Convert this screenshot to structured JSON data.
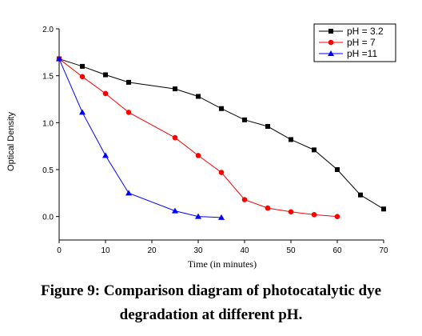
{
  "caption": {
    "line1": "Figure 9: Comparison diagram of photocatalytic dye",
    "line2": "degradation at different pH."
  },
  "chart_data": {
    "type": "line",
    "title": "",
    "xlabel": "Time (in minutes)",
    "ylabel": "Optical Density",
    "xlim": [
      0,
      70
    ],
    "ylim": [
      -0.25,
      2.0
    ],
    "x_ticks": [
      0,
      10,
      20,
      30,
      40,
      50,
      60,
      70
    ],
    "x_tick_labels": [
      "0",
      "10",
      "20",
      "30",
      "40",
      "50",
      "60",
      "70"
    ],
    "y_ticks": [
      0.0,
      0.5,
      1.0,
      1.5,
      2.0
    ],
    "y_tick_labels": [
      "0.0",
      "0.5",
      "1.0",
      "1.5",
      "2.0"
    ],
    "grid": false,
    "legend_position": "top-right",
    "series": [
      {
        "name": "pH = 3.2",
        "color": "#000000",
        "marker": "square",
        "x": [
          0,
          5,
          10,
          15,
          25,
          30,
          35,
          40,
          45,
          50,
          55,
          60,
          65,
          70
        ],
        "y": [
          1.68,
          1.6,
          1.51,
          1.43,
          1.36,
          1.28,
          1.15,
          1.03,
          0.96,
          0.82,
          0.71,
          0.5,
          0.23,
          0.08
        ]
      },
      {
        "name": "pH = 7",
        "color": "#ff0000",
        "marker": "circle",
        "x": [
          0,
          5,
          10,
          15,
          25,
          30,
          35,
          40,
          45,
          50,
          55,
          60
        ],
        "y": [
          1.68,
          1.49,
          1.31,
          1.11,
          0.84,
          0.65,
          0.47,
          0.18,
          0.09,
          0.05,
          0.02,
          0.0
        ]
      },
      {
        "name": "pH =11",
        "color": "#0000ff",
        "marker": "triangle",
        "x": [
          0,
          5,
          10,
          15,
          25,
          30,
          35
        ],
        "y": [
          1.68,
          1.11,
          0.65,
          0.25,
          0.06,
          0.0,
          -0.01
        ]
      }
    ]
  }
}
